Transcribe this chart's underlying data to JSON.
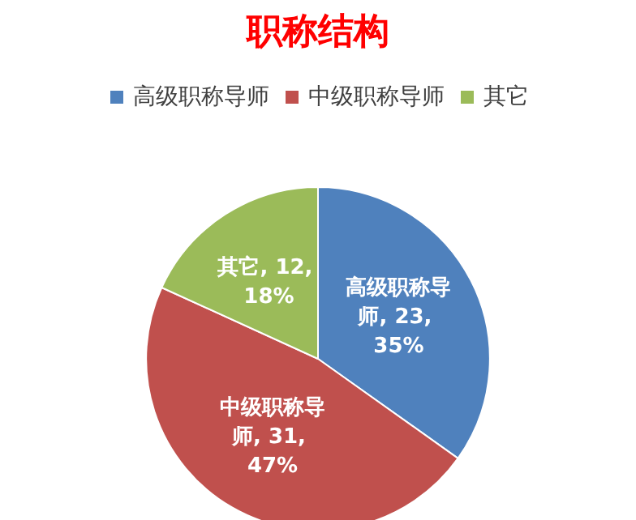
{
  "chart_data": {
    "type": "pie",
    "title": "职称结构",
    "categories": [
      "高级职称导师",
      "中级职称导师",
      "其它"
    ],
    "values": [
      23,
      31,
      12
    ],
    "colors": [
      "#4f81bd",
      "#c0504d",
      "#9bbb59"
    ],
    "value_labels": [
      "高级职称导师, 23, 35%",
      "中级职称导师, 31, 47%",
      "其它, 12, 18%"
    ],
    "legend": "top"
  }
}
